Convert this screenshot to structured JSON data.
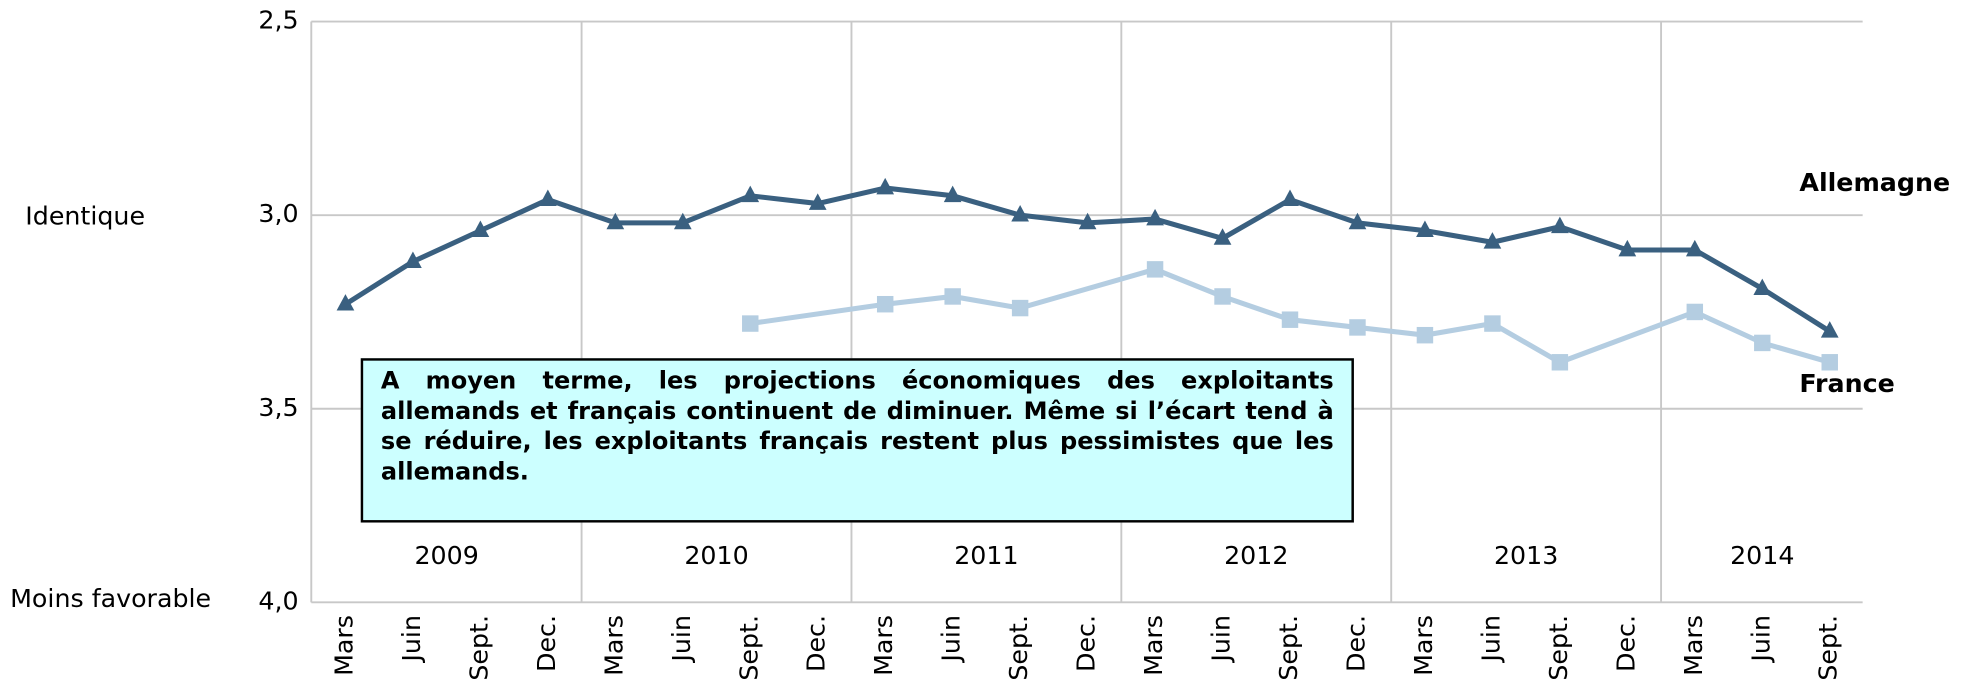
{
  "chart_data": {
    "type": "line",
    "categories": [
      "Mars",
      "Juin",
      "Sept.",
      "Dec.",
      "Mars",
      "Juin",
      "Sept.",
      "Dec.",
      "Mars",
      "Juin",
      "Sept.",
      "Dec.",
      "Mars",
      "Juin",
      "Sept.",
      "Dec.",
      "Mars",
      "Juin",
      "Sept.",
      "Dec.",
      "Mars",
      "Juin",
      "Sept."
    ],
    "years": [
      "2009",
      "2010",
      "2011",
      "2012",
      "2013",
      "2014"
    ],
    "series": [
      {
        "name": "Allemagne",
        "color": "#3a6080",
        "marker": "triangle",
        "values": [
          3.23,
          3.12,
          3.04,
          2.96,
          3.02,
          3.02,
          2.95,
          2.97,
          2.93,
          2.95,
          3.0,
          3.02,
          3.01,
          3.06,
          2.96,
          3.02,
          3.04,
          3.07,
          3.03,
          3.09,
          3.09,
          3.19,
          3.3
        ]
      },
      {
        "name": "France",
        "color": "#b4cde1",
        "marker": "square",
        "values": [
          null,
          null,
          null,
          null,
          null,
          null,
          3.28,
          null,
          3.23,
          3.21,
          3.24,
          null,
          3.14,
          3.21,
          3.27,
          3.29,
          3.31,
          3.28,
          3.38,
          null,
          3.25,
          3.33,
          3.38
        ]
      }
    ],
    "ylim": [
      2.5,
      4.0
    ],
    "y_inverted": true,
    "yticks": [
      {
        "value": 2.5,
        "label": "2,5"
      },
      {
        "value": 3.0,
        "label": "3,0"
      },
      {
        "value": 3.5,
        "label": "3,5"
      },
      {
        "value": 4.0,
        "label": "4,0"
      }
    ],
    "y_labels": [
      {
        "value": 3.0,
        "label": "Identique"
      },
      {
        "value": 4.0,
        "label": "Moins favorable"
      }
    ],
    "grid": true,
    "annotation": "A moyen terme, les projections économiques des exploitants allemands et français continuent de diminuer. Même si l’écart tend à se réduire, les exploitants français restent plus pessimistes que les allemands."
  }
}
